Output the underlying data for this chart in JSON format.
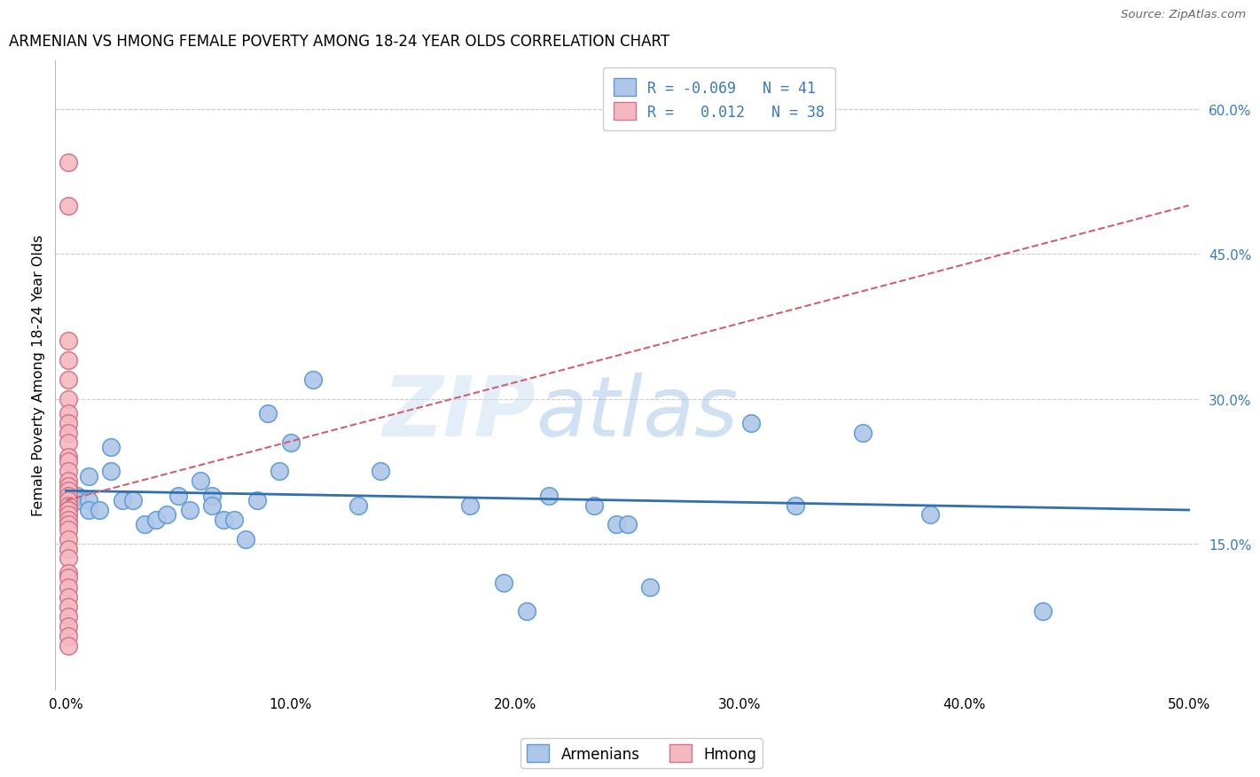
{
  "title": "ARMENIAN VS HMONG FEMALE POVERTY AMONG 18-24 YEAR OLDS CORRELATION CHART",
  "source": "Source: ZipAtlas.com",
  "ylabel": "Female Poverty Among 18-24 Year Olds",
  "xlim": [
    -0.005,
    0.505
  ],
  "ylim": [
    0.0,
    0.65
  ],
  "xticks": [
    0.0,
    0.1,
    0.2,
    0.3,
    0.4,
    0.5
  ],
  "yticks_right": [
    0.15,
    0.3,
    0.45,
    0.6
  ],
  "ytick_right_labels": [
    "15.0%",
    "30.0%",
    "45.0%",
    "60.0%"
  ],
  "xtick_labels": [
    "0.0%",
    "10.0%",
    "20.0%",
    "30.0%",
    "40.0%",
    "50.0%"
  ],
  "armenian_R": -0.069,
  "armenian_N": 41,
  "hmong_R": 0.012,
  "hmong_N": 38,
  "armenian_color": "#aec6e8",
  "armenian_edge_color": "#5b9bd5",
  "hmong_color": "#f4b8c1",
  "hmong_edge_color": "#d4748a",
  "armenian_line_color": "#3070b0",
  "hmong_line_color": "#d06070",
  "watermark_zip": "ZIP",
  "watermark_atlas": "atlas",
  "armenian_line_x": [
    0.0,
    0.5
  ],
  "armenian_line_y": [
    0.205,
    0.185
  ],
  "hmong_line_x": [
    0.0,
    0.5
  ],
  "hmong_line_y": [
    0.195,
    0.5
  ],
  "armenian_x": [
    0.005,
    0.005,
    0.01,
    0.01,
    0.01,
    0.015,
    0.02,
    0.02,
    0.025,
    0.03,
    0.035,
    0.04,
    0.045,
    0.05,
    0.055,
    0.06,
    0.065,
    0.065,
    0.07,
    0.075,
    0.08,
    0.085,
    0.09,
    0.095,
    0.1,
    0.11,
    0.13,
    0.14,
    0.18,
    0.195,
    0.205,
    0.215,
    0.235,
    0.245,
    0.25,
    0.26,
    0.305,
    0.325,
    0.355,
    0.385,
    0.435
  ],
  "armenian_y": [
    0.2,
    0.195,
    0.22,
    0.195,
    0.185,
    0.185,
    0.25,
    0.225,
    0.195,
    0.195,
    0.17,
    0.175,
    0.18,
    0.2,
    0.185,
    0.215,
    0.2,
    0.19,
    0.175,
    0.175,
    0.155,
    0.195,
    0.285,
    0.225,
    0.255,
    0.32,
    0.19,
    0.225,
    0.19,
    0.11,
    0.08,
    0.2,
    0.19,
    0.17,
    0.17,
    0.105,
    0.275,
    0.19,
    0.265,
    0.18,
    0.08
  ],
  "hmong_x": [
    0.001,
    0.001,
    0.001,
    0.001,
    0.001,
    0.001,
    0.001,
    0.001,
    0.001,
    0.001,
    0.001,
    0.001,
    0.001,
    0.001,
    0.001,
    0.001,
    0.001,
    0.001,
    0.001,
    0.001,
    0.001,
    0.001,
    0.001,
    0.001,
    0.001,
    0.001,
    0.001,
    0.001,
    0.001,
    0.001,
    0.001,
    0.001,
    0.001,
    0.001,
    0.001,
    0.001,
    0.001,
    0.001
  ],
  "hmong_y": [
    0.545,
    0.5,
    0.36,
    0.34,
    0.32,
    0.3,
    0.285,
    0.275,
    0.265,
    0.255,
    0.24,
    0.235,
    0.225,
    0.215,
    0.21,
    0.205,
    0.2,
    0.195,
    0.19,
    0.185,
    0.185,
    0.185,
    0.18,
    0.175,
    0.17,
    0.165,
    0.155,
    0.145,
    0.135,
    0.12,
    0.115,
    0.105,
    0.095,
    0.085,
    0.075,
    0.065,
    0.055,
    0.045
  ]
}
